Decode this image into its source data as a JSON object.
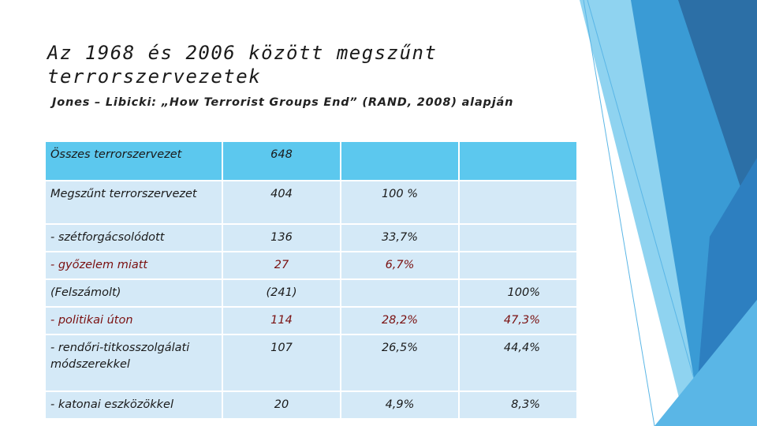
{
  "header": {
    "title": "Az 1968 és 2006 között megszűnt terrorszervezetek",
    "subtitle": "Jones – Libicki: „How Terrorist Groups End” (RAND, 2008) alapján"
  },
  "table": {
    "rows": [
      [
        "Összes terrorszervezet",
        "648",
        null,
        null
      ],
      [
        "Megszűnt terrorszervezet",
        "404",
        "100 %",
        null
      ],
      [
        "- szétforgácsolódott",
        "136",
        "33,7%",
        null
      ],
      [
        "- győzelem miatt",
        "27",
        "6,7%",
        null
      ],
      [
        "(Felszámolt)",
        "(241)",
        null,
        "100%"
      ],
      [
        "- politikai úton",
        "114",
        "28,2%",
        "47,3%"
      ],
      [
        "- rendőri-titkosszolgálati módszerekkel",
        "107",
        "26,5%",
        "44,4%"
      ],
      [
        "- katonai eszközökkel",
        "20",
        "4,9%",
        "8,3%"
      ]
    ]
  }
}
